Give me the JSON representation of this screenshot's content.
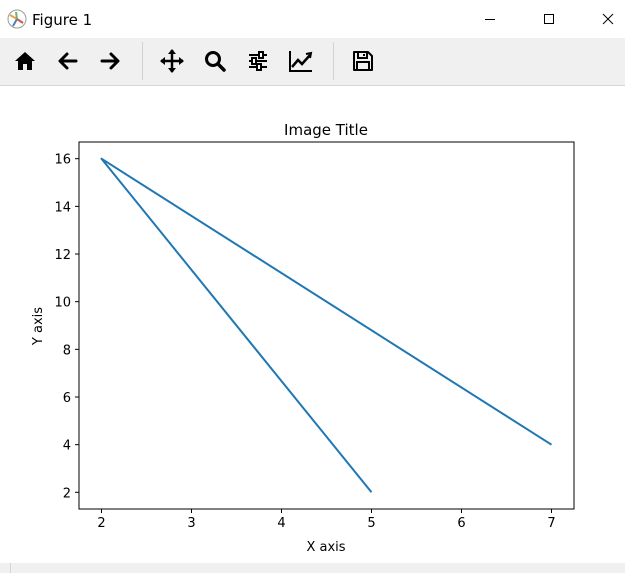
{
  "window": {
    "title": "Figure 1"
  },
  "toolbar": {
    "buttons": [
      {
        "icon": "home-icon",
        "action": "home"
      },
      {
        "icon": "back-arrow-icon",
        "action": "back"
      },
      {
        "icon": "forward-arrow-icon",
        "action": "forward"
      },
      {
        "icon": "pan-icon",
        "action": "pan"
      },
      {
        "icon": "zoom-icon",
        "action": "zoom"
      },
      {
        "icon": "configure-subplots-icon",
        "action": "subplots"
      },
      {
        "icon": "edit-axis-icon",
        "action": "customize"
      },
      {
        "icon": "save-icon",
        "action": "save"
      }
    ]
  },
  "chart_data": {
    "type": "line",
    "title": "Image Title",
    "xlabel": "X axis",
    "ylabel": "Y axis",
    "xlim": [
      1.75,
      7.25
    ],
    "ylim": [
      1.3,
      16.7
    ],
    "xticks": [
      2,
      3,
      4,
      5,
      6,
      7
    ],
    "yticks": [
      2,
      4,
      6,
      8,
      10,
      12,
      14,
      16
    ],
    "grid": false,
    "series": [
      {
        "x": [
          5,
          2,
          7
        ],
        "y": [
          2,
          16,
          4
        ],
        "color": "#1f77b4"
      }
    ]
  }
}
